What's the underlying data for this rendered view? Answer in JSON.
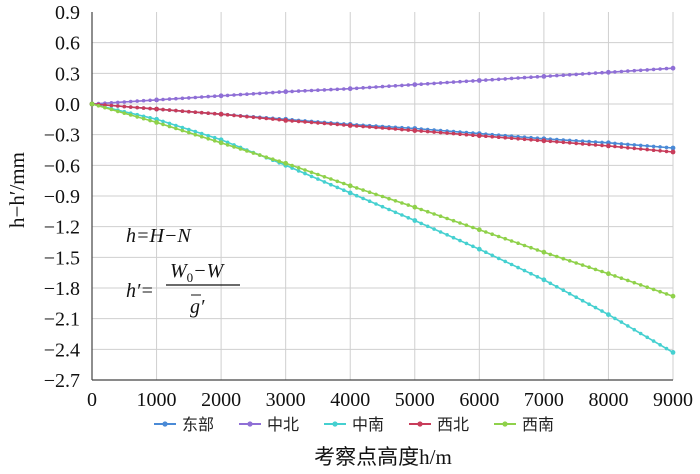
{
  "chart_data": {
    "type": "line",
    "xlabel": "考察点高度h/m",
    "ylabel": "h−h′/mm",
    "xlim": [
      0,
      9000
    ],
    "ylim": [
      -2.7,
      0.9
    ],
    "x_ticks": [
      "0",
      "1000",
      "2000",
      "3000",
      "4000",
      "5000",
      "6000",
      "7000",
      "8000",
      "9000"
    ],
    "y_ticks": [
      "0.9",
      "0.6",
      "0.3",
      "0.0",
      "−0.3",
      "−0.6",
      "−0.9",
      "−1.2",
      "−1.5",
      "−1.8",
      "−2.1",
      "−2.4",
      "−2.7"
    ],
    "grid": true,
    "legend_position": "bottom",
    "x": [
      0,
      1000,
      2000,
      3000,
      4000,
      5000,
      6000,
      7000,
      8000,
      9000
    ],
    "series": [
      {
        "name": "东部",
        "color": "#4a8ad6",
        "values": [
          0,
          -0.05,
          -0.1,
          -0.15,
          -0.2,
          -0.24,
          -0.29,
          -0.34,
          -0.38,
          -0.43
        ]
      },
      {
        "name": "中北",
        "color": "#8f6fd6",
        "values": [
          0,
          0.04,
          0.08,
          0.12,
          0.15,
          0.19,
          0.23,
          0.27,
          0.31,
          0.35
        ]
      },
      {
        "name": "中南",
        "color": "#45d0d0",
        "values": [
          0,
          -0.15,
          -0.35,
          -0.6,
          -0.87,
          -1.14,
          -1.42,
          -1.72,
          -2.06,
          -2.43
        ]
      },
      {
        "name": "西北",
        "color": "#c83c5a",
        "values": [
          0,
          -0.05,
          -0.1,
          -0.16,
          -0.21,
          -0.26,
          -0.31,
          -0.36,
          -0.41,
          -0.47
        ]
      },
      {
        "name": "西南",
        "color": "#8fd14a",
        "values": [
          0,
          -0.18,
          -0.38,
          -0.58,
          -0.8,
          -1.01,
          -1.23,
          -1.45,
          -1.66,
          -1.88
        ]
      }
    ],
    "annotations": {
      "eq1": "h=H−N",
      "eq2_lhs": "h′=",
      "eq2_num_w": "W",
      "eq2_num_sub": "0",
      "eq2_num_rest": "−W",
      "eq2_den": "g′"
    }
  }
}
